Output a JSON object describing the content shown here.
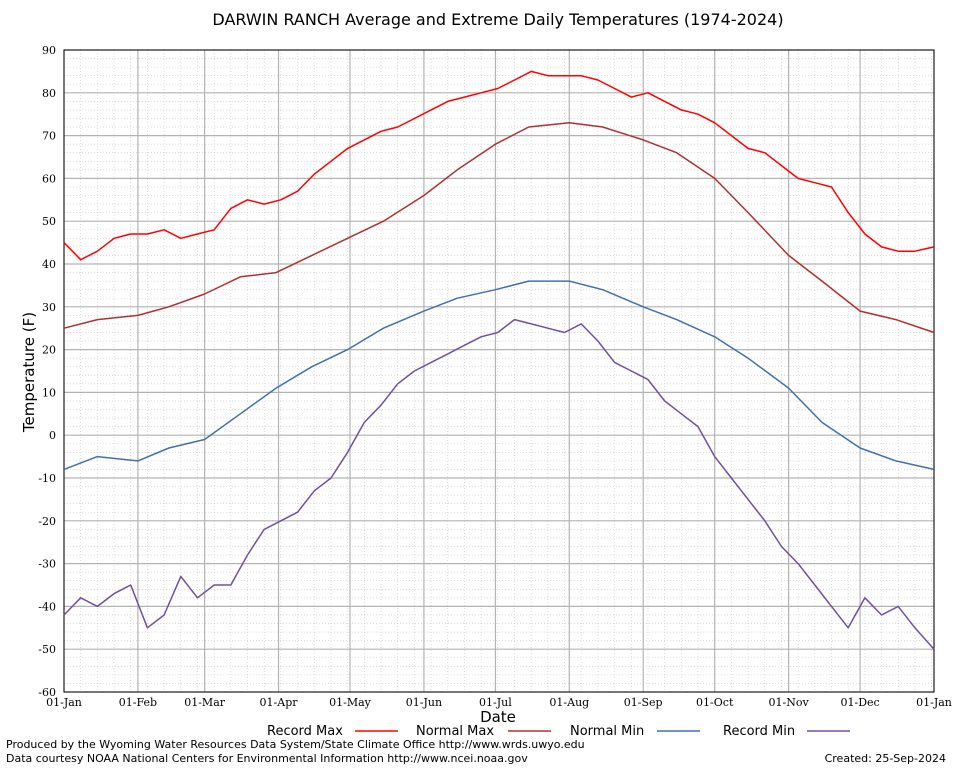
{
  "chart_data": {
    "type": "line",
    "title": "DARWIN RANCH Average and Extreme Daily Temperatures (1974-2024)",
    "xlabel": "Date",
    "ylabel": "Temperature (F)",
    "ylim": [
      -60,
      90
    ],
    "yticks": [
      "90",
      "80",
      "70",
      "60",
      "50",
      "40",
      "30",
      "20",
      "10",
      "0",
      "-10",
      "-20",
      "-30",
      "-40",
      "-50",
      "-60"
    ],
    "xticks": [
      "01-Jan",
      "01-Feb",
      "01-Mar",
      "01-Apr",
      "01-May",
      "01-Jun",
      "01-Jul",
      "01-Aug",
      "01-Sep",
      "01-Oct",
      "01-Nov",
      "01-Dec",
      "01-Jan"
    ],
    "grid": true,
    "legend_position": "bottom",
    "x_unit": "day of year (1-366)",
    "series": [
      {
        "name": "Record Max",
        "color": "#ff0000",
        "x": [
          1,
          8,
          15,
          22,
          29,
          36,
          43,
          50,
          57,
          64,
          71,
          78,
          85,
          92,
          99,
          106,
          113,
          120,
          127,
          134,
          141,
          148,
          155,
          162,
          169,
          176,
          183,
          190,
          197,
          204,
          211,
          218,
          225,
          232,
          239,
          246,
          253,
          260,
          267,
          274,
          281,
          288,
          295,
          302,
          309,
          316,
          323,
          330,
          337,
          344,
          351,
          358,
          366
        ],
        "values": [
          45,
          41,
          43,
          46,
          47,
          47,
          48,
          46,
          47,
          48,
          53,
          55,
          54,
          55,
          57,
          61,
          64,
          67,
          69,
          71,
          72,
          74,
          76,
          78,
          79,
          80,
          81,
          83,
          85,
          84,
          84,
          84,
          83,
          81,
          79,
          80,
          78,
          76,
          75,
          73,
          70,
          67,
          66,
          63,
          60,
          59,
          58,
          52,
          47,
          44,
          43,
          43,
          44
        ]
      },
      {
        "name": "Normal Max",
        "color": "#b03030",
        "x": [
          1,
          15,
          32,
          45,
          60,
          75,
          90,
          105,
          120,
          135,
          152,
          166,
          182,
          196,
          213,
          227,
          244,
          258,
          274,
          288,
          305,
          319,
          335,
          350,
          366
        ],
        "values": [
          25,
          27,
          28,
          30,
          33,
          37,
          38,
          42,
          46,
          50,
          56,
          62,
          68,
          72,
          73,
          72,
          69,
          66,
          60,
          52,
          42,
          36,
          29,
          27,
          24
        ]
      },
      {
        "name": "Normal Min",
        "color": "#4070b0",
        "x": [
          1,
          15,
          32,
          45,
          60,
          75,
          90,
          105,
          120,
          135,
          152,
          166,
          182,
          196,
          213,
          227,
          244,
          258,
          274,
          288,
          305,
          319,
          335,
          350,
          366
        ],
        "values": [
          -8,
          -5,
          -6,
          -3,
          -1,
          5,
          11,
          16,
          20,
          25,
          29,
          32,
          34,
          36,
          36,
          34,
          30,
          27,
          23,
          18,
          11,
          3,
          -3,
          -6,
          -8
        ]
      },
      {
        "name": "Record Min",
        "color": "#7050a0",
        "x": [
          1,
          8,
          15,
          22,
          29,
          36,
          43,
          50,
          57,
          64,
          71,
          78,
          85,
          92,
          99,
          106,
          113,
          120,
          127,
          134,
          141,
          148,
          155,
          162,
          169,
          176,
          183,
          190,
          197,
          204,
          211,
          218,
          225,
          232,
          239,
          246,
          253,
          260,
          267,
          274,
          281,
          288,
          295,
          302,
          309,
          316,
          323,
          330,
          337,
          344,
          351,
          358,
          366
        ],
        "values": [
          -42,
          -38,
          -40,
          -37,
          -35,
          -45,
          -42,
          -33,
          -38,
          -35,
          -35,
          -28,
          -22,
          -20,
          -18,
          -13,
          -10,
          -4,
          3,
          7,
          12,
          15,
          17,
          19,
          21,
          23,
          24,
          27,
          26,
          25,
          24,
          26,
          22,
          17,
          15,
          13,
          8,
          5,
          2,
          -5,
          -10,
          -15,
          -20,
          -26,
          -30,
          -35,
          -40,
          -45,
          -38,
          -42,
          -40,
          -45,
          -50
        ]
      }
    ]
  },
  "legend": {
    "record_max": "Record Max",
    "normal_max": "Normal Max",
    "normal_min": "Normal Min",
    "record_min": "Record Min"
  },
  "footer": {
    "line1": "Produced by the Wyoming Water Resources Data System/State Climate Office http://www.wrds.uwyo.edu",
    "line2": "Data courtesy NOAA National Centers for Environmental Information http://www.ncei.noaa.gov",
    "created": "Created:  25-Sep-2024"
  }
}
